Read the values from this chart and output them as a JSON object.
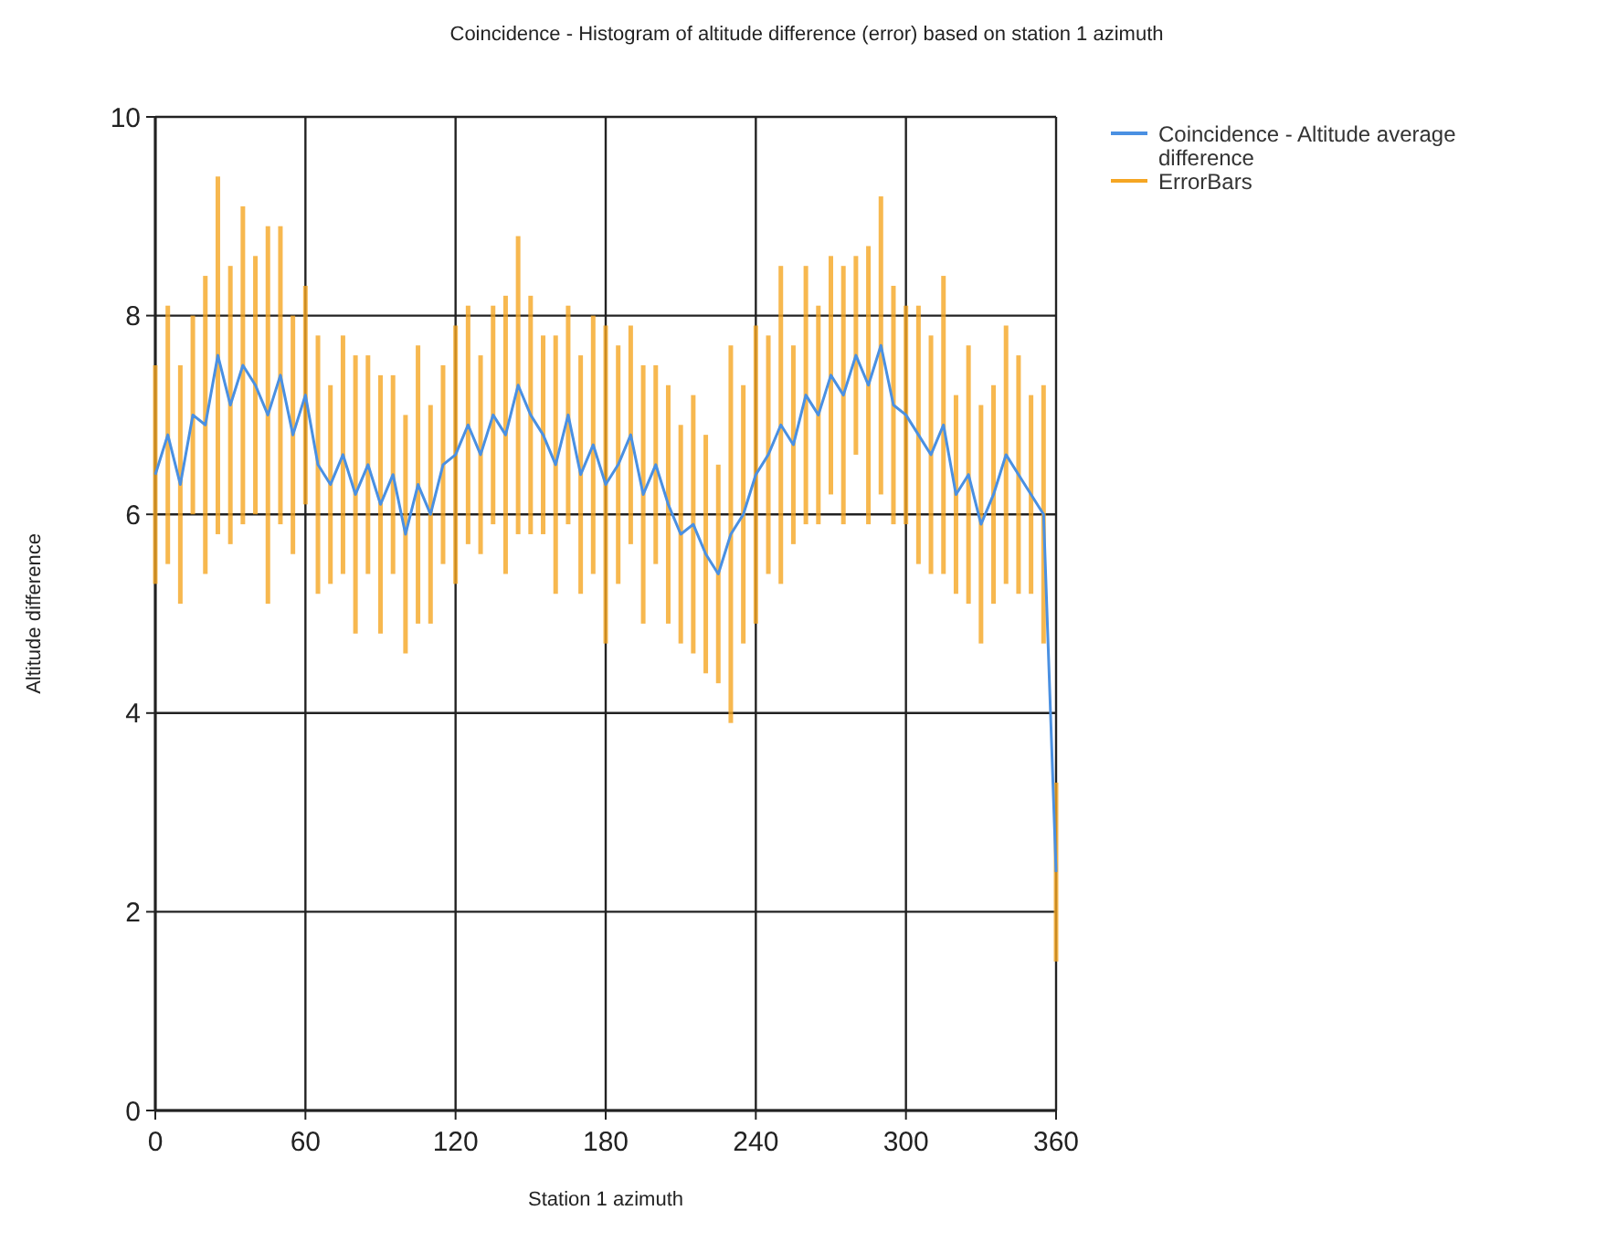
{
  "chart_data": {
    "type": "line",
    "title": "Coincidence - Histogram of altitude difference (error) based on station 1 azimuth",
    "xlabel": "Station 1 azimuth",
    "ylabel": "Altitude difference",
    "x": [
      0,
      5,
      10,
      15,
      20,
      25,
      30,
      35,
      40,
      45,
      50,
      55,
      60,
      65,
      70,
      75,
      80,
      85,
      90,
      95,
      100,
      105,
      110,
      115,
      120,
      125,
      130,
      135,
      140,
      145,
      150,
      155,
      160,
      165,
      170,
      175,
      180,
      185,
      190,
      195,
      200,
      205,
      210,
      215,
      220,
      225,
      230,
      235,
      240,
      245,
      250,
      255,
      260,
      265,
      270,
      275,
      280,
      285,
      290,
      295,
      300,
      305,
      310,
      315,
      320,
      325,
      330,
      335,
      340,
      345,
      350,
      355,
      360
    ],
    "series": [
      {
        "name": "Coincidence - Altitude average difference",
        "color": "#4a90e2",
        "values": [
          6.4,
          6.8,
          6.3,
          7.0,
          6.9,
          7.6,
          7.1,
          7.5,
          7.3,
          7.0,
          7.4,
          6.8,
          7.2,
          6.5,
          6.3,
          6.6,
          6.2,
          6.5,
          6.1,
          6.4,
          5.8,
          6.3,
          6.0,
          6.5,
          6.6,
          6.9,
          6.6,
          7.0,
          6.8,
          7.3,
          7.0,
          6.8,
          6.5,
          7.0,
          6.4,
          6.7,
          6.3,
          6.5,
          6.8,
          6.2,
          6.5,
          6.1,
          5.8,
          5.9,
          5.6,
          5.4,
          5.8,
          6.0,
          6.4,
          6.6,
          6.9,
          6.7,
          7.2,
          7.0,
          7.4,
          7.2,
          7.6,
          7.3,
          7.7,
          7.1,
          7.0,
          6.8,
          6.6,
          6.9,
          6.2,
          6.4,
          5.9,
          6.2,
          6.6,
          6.4,
          6.2,
          6.0,
          2.4
        ]
      },
      {
        "name": "ErrorBars",
        "type": "bar",
        "color": "#f5a623",
        "base": [
          5.3,
          5.5,
          5.1,
          6.0,
          5.4,
          5.8,
          5.7,
          5.9,
          6.0,
          5.1,
          5.9,
          5.6,
          6.1,
          5.2,
          5.3,
          5.4,
          4.8,
          5.4,
          4.8,
          5.4,
          4.6,
          4.9,
          4.9,
          5.5,
          5.3,
          5.7,
          5.6,
          5.9,
          5.4,
          5.8,
          5.8,
          5.8,
          5.2,
          5.9,
          5.2,
          5.4,
          4.7,
          5.3,
          5.7,
          4.9,
          5.5,
          4.9,
          4.7,
          4.6,
          4.4,
          4.3,
          3.9,
          4.7,
          4.9,
          5.4,
          5.3,
          5.7,
          5.9,
          5.9,
          6.2,
          5.9,
          6.6,
          5.9,
          6.2,
          5.9,
          5.9,
          5.5,
          5.4,
          5.4,
          5.2,
          5.1,
          4.7,
          5.1,
          5.3,
          5.2,
          5.2,
          4.7,
          1.5
        ],
        "values": [
          2.2,
          2.6,
          2.4,
          2.0,
          3.0,
          3.6,
          2.8,
          3.2,
          2.6,
          3.8,
          3.0,
          2.4,
          2.2,
          2.6,
          2.0,
          2.4,
          2.8,
          2.2,
          2.6,
          2.0,
          2.4,
          2.8,
          2.2,
          2.0,
          2.6,
          2.4,
          2.0,
          2.2,
          2.8,
          3.0,
          2.4,
          2.0,
          2.6,
          2.2,
          2.4,
          2.6,
          3.2,
          2.4,
          2.2,
          2.6,
          2.0,
          2.4,
          2.2,
          2.6,
          2.4,
          2.2,
          3.8,
          2.6,
          3.0,
          2.4,
          3.2,
          2.0,
          2.6,
          2.2,
          2.4,
          2.6,
          2.0,
          2.8,
          3.0,
          2.4,
          2.2,
          2.6,
          2.4,
          3.0,
          2.0,
          2.6,
          2.4,
          2.2,
          2.6,
          2.4,
          2.0,
          2.6,
          1.8
        ]
      }
    ],
    "xlim": [
      0,
      360
    ],
    "xticks": [
      0,
      60,
      120,
      180,
      240,
      300,
      360
    ],
    "ylim": [
      0,
      10
    ],
    "yticks": [
      0,
      2,
      4,
      6,
      8,
      10
    ],
    "grid": true,
    "legend": "top right"
  }
}
